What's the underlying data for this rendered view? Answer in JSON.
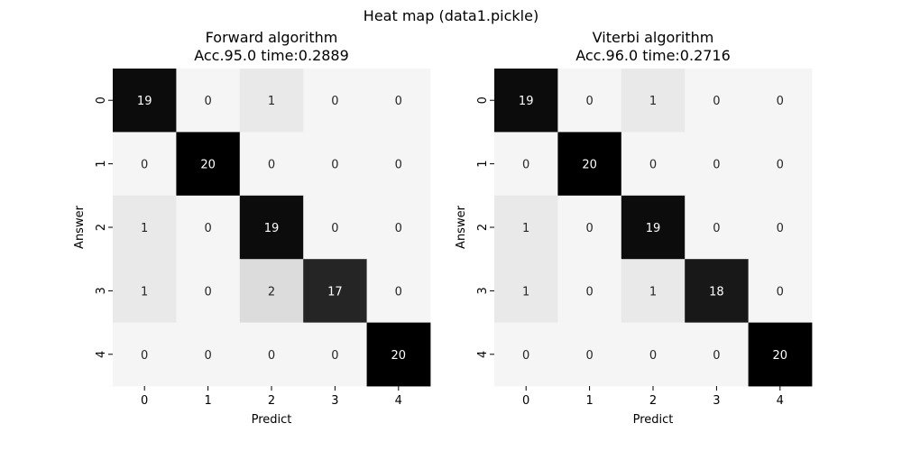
{
  "figure": {
    "suptitle": "Heat map (data1.pickle)"
  },
  "chart_data": [
    {
      "type": "heatmap",
      "title_line1": "Forward algorithm",
      "title_line2": "Acc.95.0 time:0.2889",
      "xlabel": "Predict",
      "ylabel": "Answer",
      "x_categories": [
        "0",
        "1",
        "2",
        "3",
        "4"
      ],
      "y_categories": [
        "0",
        "1",
        "2",
        "3",
        "4"
      ],
      "values": [
        [
          19,
          0,
          1,
          0,
          0
        ],
        [
          0,
          20,
          0,
          0,
          0
        ],
        [
          1,
          0,
          19,
          0,
          0
        ],
        [
          1,
          0,
          2,
          17,
          0
        ],
        [
          0,
          0,
          0,
          0,
          20
        ]
      ],
      "color_range": [
        0,
        20
      ],
      "colormap": "white-to-black",
      "colorbar": false
    },
    {
      "type": "heatmap",
      "title_line1": "Viterbi algorithm",
      "title_line2": "Acc.96.0 time:0.2716",
      "xlabel": "Predict",
      "ylabel": "Answer",
      "x_categories": [
        "0",
        "1",
        "2",
        "3",
        "4"
      ],
      "y_categories": [
        "0",
        "1",
        "2",
        "3",
        "4"
      ],
      "values": [
        [
          19,
          0,
          1,
          0,
          0
        ],
        [
          0,
          20,
          0,
          0,
          0
        ],
        [
          1,
          0,
          19,
          0,
          0
        ],
        [
          1,
          0,
          1,
          18,
          0
        ],
        [
          0,
          0,
          0,
          0,
          20
        ]
      ],
      "color_range": [
        0,
        20
      ],
      "colormap": "white-to-black",
      "colorbar": false
    }
  ]
}
